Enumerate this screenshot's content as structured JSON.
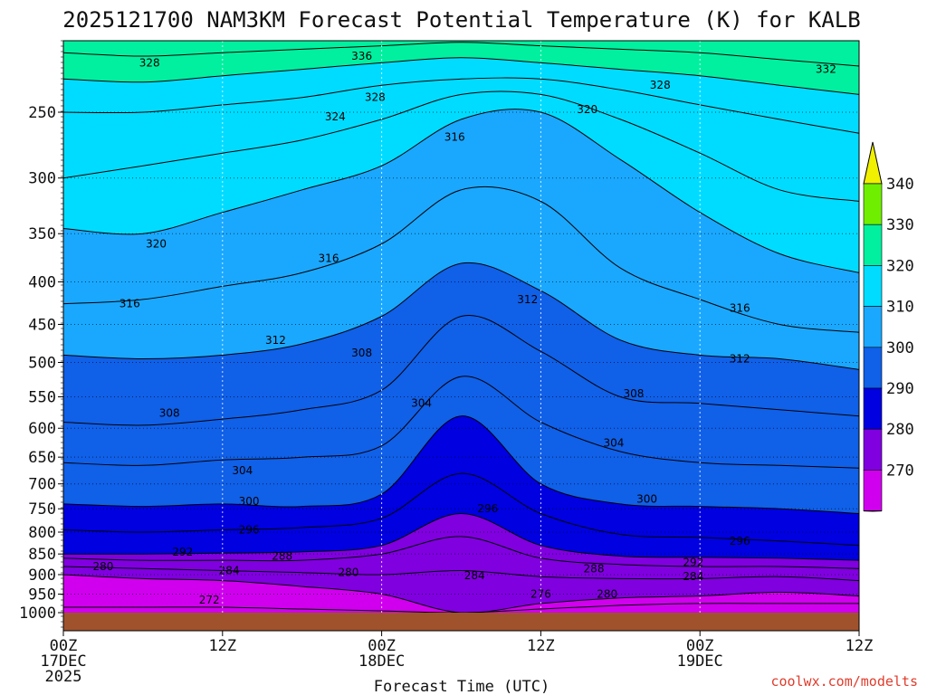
{
  "chart_data": {
    "type": "heatmap",
    "title": "2025121700 NAM3KM Forecast Potential Temperature (K) for KALB",
    "xlabel": "Forecast Time (UTC)",
    "ylabel": "",
    "credit": "coolwx.com/modelts",
    "y_axis": {
      "scale": "log-pressure",
      "unit": "hPa",
      "range": [
        1000,
        200
      ],
      "ticks": [
        "250",
        "300",
        "350",
        "400",
        "450",
        "500",
        "550",
        "600",
        "650",
        "700",
        "750",
        "800",
        "850",
        "900",
        "950",
        "1000"
      ]
    },
    "x_axis": {
      "unit": "forecast hour",
      "range": [
        0,
        60
      ],
      "ticks": [
        {
          "hour": 0,
          "line1": "00Z",
          "line2": "17DEC",
          "line3": "2025"
        },
        {
          "hour": 12,
          "line1": "12Z",
          "line2": "",
          "line3": ""
        },
        {
          "hour": 24,
          "line1": "00Z",
          "line2": "18DEC",
          "line3": ""
        },
        {
          "hour": 36,
          "line1": "12Z",
          "line2": "",
          "line3": ""
        },
        {
          "hour": 48,
          "line1": "00Z",
          "line2": "19DEC",
          "line3": ""
        },
        {
          "hour": 60,
          "line1": "12Z",
          "line2": "",
          "line3": ""
        }
      ]
    },
    "colorbar": {
      "levels": [
        "340",
        "330",
        "320",
        "310",
        "300",
        "290",
        "280",
        "270"
      ],
      "colors": [
        {
          "range": "<270",
          "color": "#ff00cc"
        },
        {
          "range": "270-280",
          "color": "#d000ee"
        },
        {
          "range": "280-290",
          "color": "#8000e0"
        },
        {
          "range": "290-300",
          "color": "#0000e0"
        },
        {
          "range": "300-310",
          "color": "#1060e8"
        },
        {
          "range": "310-320",
          "color": "#1aa8ff"
        },
        {
          "range": "320-330",
          "color": "#00dcff"
        },
        {
          "range": "330-340",
          "color": "#00f0a0"
        },
        {
          "range": "340-350",
          "color": "#70ee00"
        },
        {
          "range": ">350",
          "color": "#f0f000"
        }
      ]
    },
    "isentropes": [
      {
        "theta": 276,
        "p": [
          985,
          985,
          985,
          990,
          995,
          1000,
          990,
          980,
          975,
          975,
          975
        ]
      },
      {
        "theta": 280,
        "p": [
          900,
          910,
          915,
          930,
          950,
          1000,
          975,
          960,
          955,
          945,
          955
        ]
      },
      {
        "theta": 284,
        "p": [
          880,
          885,
          890,
          895,
          900,
          890,
          905,
          910,
          910,
          905,
          915
        ]
      },
      {
        "theta": 288,
        "p": [
          860,
          865,
          865,
          865,
          850,
          810,
          860,
          875,
          880,
          880,
          885
        ]
      },
      {
        "theta": 292,
        "p": [
          850,
          850,
          848,
          845,
          830,
          760,
          830,
          855,
          858,
          860,
          865
        ]
      },
      {
        "theta": 296,
        "p": [
          795,
          800,
          795,
          790,
          770,
          680,
          760,
          805,
          812,
          820,
          830
        ]
      },
      {
        "theta": 300,
        "p": [
          740,
          745,
          740,
          745,
          720,
          580,
          700,
          740,
          745,
          750,
          760
        ]
      },
      {
        "theta": 304,
        "p": [
          660,
          665,
          655,
          650,
          630,
          520,
          590,
          640,
          660,
          665,
          670
        ]
      },
      {
        "theta": 308,
        "p": [
          590,
          595,
          585,
          570,
          540,
          440,
          485,
          550,
          560,
          570,
          580
        ]
      },
      {
        "theta": 312,
        "p": [
          490,
          495,
          490,
          475,
          440,
          380,
          410,
          470,
          490,
          495,
          510
        ]
      },
      {
        "theta": 316,
        "p": [
          425,
          420,
          405,
          390,
          360,
          310,
          320,
          385,
          420,
          450,
          460
        ]
      },
      {
        "theta": 320,
        "p": [
          345,
          350,
          330,
          310,
          290,
          255,
          250,
          285,
          330,
          370,
          390
        ]
      },
      {
        "theta": 324,
        "p": [
          300,
          290,
          280,
          270,
          255,
          238,
          238,
          255,
          280,
          310,
          320
        ]
      },
      {
        "theta": 328,
        "p": [
          250,
          250,
          245,
          240,
          232,
          228,
          228,
          235,
          245,
          255,
          265
        ]
      },
      {
        "theta": 332,
        "p": [
          228,
          230,
          226,
          222,
          218,
          215,
          218,
          222,
          226,
          232,
          238
        ]
      },
      {
        "theta": 336,
        "p": [
          212,
          214,
          212,
          210,
          208,
          206,
          208,
          210,
          212,
          216,
          220
        ]
      }
    ],
    "contour_labels": [
      {
        "text": "328",
        "hour": 6.5,
        "p": 218
      },
      {
        "text": "336",
        "hour": 22.5,
        "p": 214
      },
      {
        "text": "328",
        "hour": 23.5,
        "p": 240
      },
      {
        "text": "324",
        "hour": 20.5,
        "p": 253
      },
      {
        "text": "316",
        "hour": 29.5,
        "p": 268
      },
      {
        "text": "320",
        "hour": 39.5,
        "p": 248
      },
      {
        "text": "328",
        "hour": 45,
        "p": 232
      },
      {
        "text": "332",
        "hour": 57.5,
        "p": 222
      },
      {
        "text": "320",
        "hour": 7,
        "p": 360
      },
      {
        "text": "316",
        "hour": 20,
        "p": 375
      },
      {
        "text": "316",
        "hour": 5,
        "p": 425
      },
      {
        "text": "312",
        "hour": 35,
        "p": 420
      },
      {
        "text": "316",
        "hour": 51,
        "p": 430
      },
      {
        "text": "312",
        "hour": 16,
        "p": 470
      },
      {
        "text": "308",
        "hour": 22.5,
        "p": 487
      },
      {
        "text": "312",
        "hour": 51,
        "p": 495
      },
      {
        "text": "308",
        "hour": 8,
        "p": 575
      },
      {
        "text": "304",
        "hour": 27,
        "p": 560
      },
      {
        "text": "308",
        "hour": 43,
        "p": 545
      },
      {
        "text": "304",
        "hour": 13.5,
        "p": 675
      },
      {
        "text": "304",
        "hour": 41.5,
        "p": 625
      },
      {
        "text": "300",
        "hour": 14,
        "p": 735
      },
      {
        "text": "296",
        "hour": 32,
        "p": 750
      },
      {
        "text": "300",
        "hour": 44,
        "p": 730
      },
      {
        "text": "296",
        "hour": 14,
        "p": 795
      },
      {
        "text": "296",
        "hour": 51,
        "p": 820
      },
      {
        "text": "292",
        "hour": 9,
        "p": 845
      },
      {
        "text": "288",
        "hour": 16.5,
        "p": 855
      },
      {
        "text": "280",
        "hour": 3,
        "p": 880
      },
      {
        "text": "284",
        "hour": 12.5,
        "p": 890
      },
      {
        "text": "280",
        "hour": 21.5,
        "p": 895
      },
      {
        "text": "284",
        "hour": 31,
        "p": 902
      },
      {
        "text": "288",
        "hour": 40,
        "p": 885
      },
      {
        "text": "292",
        "hour": 47.5,
        "p": 870
      },
      {
        "text": "284",
        "hour": 47.5,
        "p": 905
      },
      {
        "text": "272",
        "hour": 11,
        "p": 965
      },
      {
        "text": "276",
        "hour": 36,
        "p": 950
      },
      {
        "text": "280",
        "hour": 41,
        "p": 950
      }
    ],
    "ground_color": "#a0522d"
  }
}
